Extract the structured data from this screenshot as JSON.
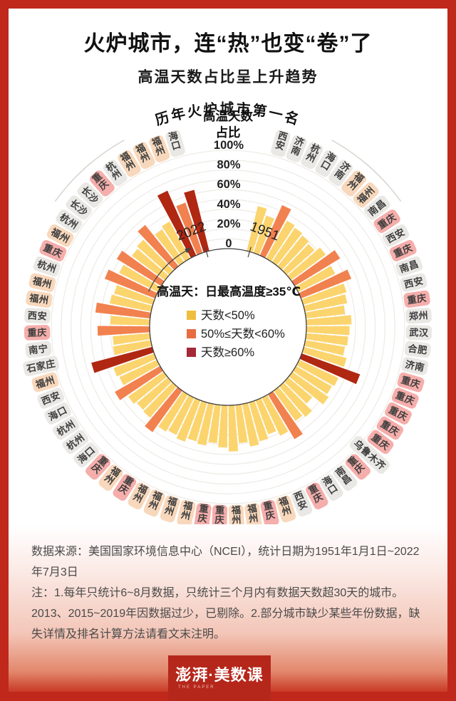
{
  "header": {
    "title": "火炉城市，连“热”也变“卷”了",
    "subtitle": "高温天数占比呈上升趋势"
  },
  "footer": {
    "source": "数据来源：美国国家环境信息中心（NCEI），统计日期为1951年1月1日~2022年7月3日",
    "note": "注：1.每年只统计6~8月数据，只统计三个月内有数据天数超30天的城市。2013、2015~2019年因数据过少，已剔除。2.部分城市缺少某些年份数据，缺失详情及排名计算方法请看文末注明。"
  },
  "logo": {
    "text": "澎湃·美数课",
    "subtext": "THE PAPER"
  },
  "colors": {
    "frame": "#C0281C",
    "bar_lt50": "#FBD46E",
    "bar_50to60": "#F1814F",
    "bar_ge60": "#B02712",
    "legend_lt50": "#EFBE3E",
    "legend_50to60": "#E76C42",
    "legend_ge60": "#A42937",
    "badge_default": "#EAE8E4",
    "badge_fuzhou": "#F8D8BC",
    "badge_chongqing": "#F5AEAB",
    "badge_text": "#3c3c3c",
    "ring": "#EFECE7",
    "axis_text": "#1f1f1f",
    "logo_bg": "#B5271B"
  },
  "chart_data": {
    "type": "bar",
    "layout": "radial, clockwise from 1951 (right of top gap) to 2022 (left of top gap)",
    "title": "历年火炉城市第一名",
    "axis": {
      "label_line1": "高温天数",
      "label_line2": "占比",
      "ticks": [
        "100%",
        "80%",
        "60%",
        "40%",
        "20%",
        "0"
      ],
      "ylim": [
        0,
        100
      ],
      "start_year_label": "1951",
      "end_year_label": "2022",
      "grid": "concentric rings every 10%"
    },
    "legend": {
      "title": "高温天：日最高温度≥35℃",
      "items": [
        {
          "label": "天数<50%",
          "bucket": "lt50"
        },
        {
          "label": "50%≤天数<60%",
          "bucket": "50to60"
        },
        {
          "label": "天数≥60%",
          "bucket": "ge60"
        }
      ],
      "position": "center"
    },
    "series": [
      {
        "year": 1951,
        "city": "西安",
        "pct": 47
      },
      {
        "year": 1952,
        "city": "济南",
        "pct": 40
      },
      {
        "year": 1953,
        "city": "杭州",
        "pct": 56
      },
      {
        "year": 1954,
        "city": "海口",
        "pct": 44
      },
      {
        "year": 1955,
        "city": "济南",
        "pct": 42
      },
      {
        "year": 1956,
        "city": "福州",
        "pct": 40
      },
      {
        "year": 1957,
        "city": "福州",
        "pct": 38
      },
      {
        "year": 1958,
        "city": "南昌",
        "pct": 44
      },
      {
        "year": 1959,
        "city": "重庆",
        "pct": 54
      },
      {
        "year": 1960,
        "city": "西安",
        "pct": 42
      },
      {
        "year": 1961,
        "city": "重庆",
        "pct": 55
      },
      {
        "year": 1962,
        "city": "南昌",
        "pct": 46
      },
      {
        "year": 1963,
        "city": "西安",
        "pct": 44
      },
      {
        "year": 1964,
        "city": "重庆",
        "pct": 40
      },
      {
        "year": 1965,
        "city": "郑州",
        "pct": 46
      },
      {
        "year": 1966,
        "city": "武汉",
        "pct": 44
      },
      {
        "year": 1967,
        "city": "合肥",
        "pct": 43
      },
      {
        "year": 1968,
        "city": "济南",
        "pct": 41
      },
      {
        "year": 1969,
        "city": "重庆",
        "pct": 45
      },
      {
        "year": 1970,
        "city": "重庆",
        "pct": 63
      },
      {
        "year": 1971,
        "city": "重庆",
        "pct": 44
      },
      {
        "year": 1972,
        "city": "重庆",
        "pct": 42
      },
      {
        "year": 1973,
        "city": "重庆",
        "pct": 45
      },
      {
        "year": 1974,
        "city": "乌鲁木齐",
        "pct": 32
      },
      {
        "year": 1975,
        "city": "重庆",
        "pct": 41
      },
      {
        "year": 1976,
        "city": "南昌",
        "pct": 38
      },
      {
        "year": 1977,
        "city": "海口",
        "pct": 53
      },
      {
        "year": 1978,
        "city": "重庆",
        "pct": 43
      },
      {
        "year": 1979,
        "city": "西安",
        "pct": 37
      },
      {
        "year": 1980,
        "city": "福州",
        "pct": 41
      },
      {
        "year": 1981,
        "city": "重庆",
        "pct": 44
      },
      {
        "year": 1982,
        "city": "福州",
        "pct": 39
      },
      {
        "year": 1983,
        "city": "福州",
        "pct": 47
      },
      {
        "year": 1984,
        "city": "重庆",
        "pct": 43
      },
      {
        "year": 1985,
        "city": "重庆",
        "pct": 39
      },
      {
        "year": 1986,
        "city": "福州",
        "pct": 43
      },
      {
        "year": 1987,
        "city": "福州",
        "pct": 41
      },
      {
        "year": 1988,
        "city": "福州",
        "pct": 45
      },
      {
        "year": 1989,
        "city": "福州",
        "pct": 42
      },
      {
        "year": 1990,
        "city": "重庆",
        "pct": 44
      },
      {
        "year": 1991,
        "city": "福州",
        "pct": 52
      },
      {
        "year": 1992,
        "city": "重庆",
        "pct": 42
      },
      {
        "year": 1993,
        "city": "海口",
        "pct": 41
      },
      {
        "year": 1994,
        "city": "杭州",
        "pct": 44
      },
      {
        "year": 1995,
        "city": "杭州",
        "pct": 53
      },
      {
        "year": 1996,
        "city": "海口",
        "pct": 42
      },
      {
        "year": 1997,
        "city": "西安",
        "pct": 44
      },
      {
        "year": 1998,
        "city": "福州",
        "pct": 64
      },
      {
        "year": 1999,
        "city": "石家庄",
        "pct": 39
      },
      {
        "year": 2000,
        "city": "南宁",
        "pct": 38
      },
      {
        "year": 2001,
        "city": "重庆",
        "pct": 53
      },
      {
        "year": 2002,
        "city": "西安",
        "pct": 40
      },
      {
        "year": 2003,
        "city": "福州",
        "pct": 56
      },
      {
        "year": 2004,
        "city": "福州",
        "pct": 43
      },
      {
        "year": 2005,
        "city": "杭州",
        "pct": 41
      },
      {
        "year": 2006,
        "city": "重庆",
        "pct": 55
      },
      {
        "year": 2007,
        "city": "福州",
        "pct": 44
      },
      {
        "year": 2008,
        "city": "杭州",
        "pct": 53
      },
      {
        "year": 2009,
        "city": "长沙",
        "pct": 42
      },
      {
        "year": 2010,
        "city": "长沙",
        "pct": 44
      },
      {
        "year": 2011,
        "city": "重庆",
        "pct": 54
      },
      {
        "year": 2012,
        "city": "杭州",
        "pct": 40
      },
      {
        "year": 2014,
        "city": "福州",
        "pct": 43
      },
      {
        "year": 2020,
        "city": "福州",
        "pct": 72
      },
      {
        "year": 2021,
        "city": "福州",
        "pct": 54
      },
      {
        "year": 2022,
        "city": "海口",
        "pct": 64
      }
    ]
  }
}
